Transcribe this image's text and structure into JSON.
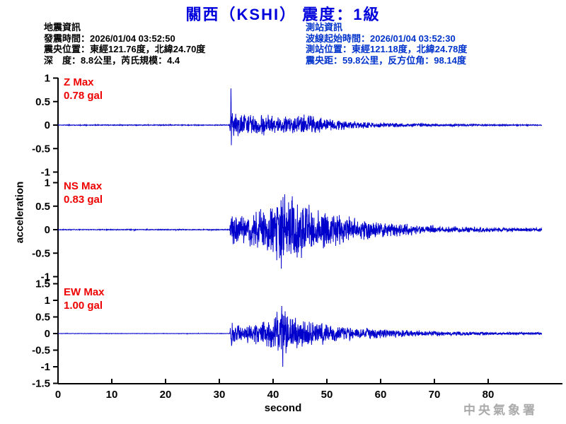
{
  "title": "關西（KSHI） 震度：1級",
  "earthquake_info": {
    "heading": "地震資訊",
    "lines": [
      "發震時間：2026/01/04 03:52:50",
      "震央位置：東經121.76度，北緯24.70度",
      "深　度：8.8公里，芮氏規模：4.4"
    ]
  },
  "station_info": {
    "heading": "測站資訊",
    "lines": [
      "波線起始時間：2026/01/04 03:52:30",
      "測站位置：東經121.18度，北緯24.78度",
      "震央距：59.8公里，反方位角：98.14度"
    ]
  },
  "watermark": "中央氣象署",
  "colors": {
    "title_blue": "#0000dd",
    "info_blue": "#0033cc",
    "label_red": "#ee0000",
    "trace_blue": "#0000cc",
    "axis_black": "#000000",
    "watermark_gray": "#aaaaaa"
  },
  "chart_data": {
    "type": "line",
    "title": "關西（KSHI） 震度：1級",
    "xlabel": "second",
    "ylabel": "acceleration",
    "x_range": [
      0,
      94
    ],
    "x_ticks": [
      0,
      10,
      20,
      30,
      40,
      50,
      60,
      70,
      80
    ],
    "grid": false,
    "event_onset_s": 32.1,
    "trace_end_s": 90,
    "trace_color": "#0000cc",
    "panels": [
      {
        "id": "Z",
        "label": "Z Max",
        "max_label": "0.78 gal",
        "max_gal": 0.78,
        "ylim": [
          -1,
          1
        ],
        "y_ticks": [
          1,
          0.5,
          0,
          -0.5,
          -1
        ],
        "peak_time_s": 32.15,
        "peak_direction": 1,
        "seed": 11,
        "envelope_t_amp_gal": [
          [
            0,
            0.01
          ],
          [
            31.9,
            0.01
          ],
          [
            32.1,
            0.78
          ],
          [
            32.5,
            0.3
          ],
          [
            34,
            0.26
          ],
          [
            37,
            0.24
          ],
          [
            40,
            0.22
          ],
          [
            44,
            0.2
          ],
          [
            47,
            0.26
          ],
          [
            48.5,
            0.18
          ],
          [
            52,
            0.12
          ],
          [
            56,
            0.08
          ],
          [
            60,
            0.06
          ],
          [
            65,
            0.045
          ],
          [
            70,
            0.035
          ],
          [
            75,
            0.027
          ],
          [
            80,
            0.022
          ],
          [
            85,
            0.016
          ],
          [
            90,
            0.013
          ]
        ]
      },
      {
        "id": "NS",
        "label": "NS Max",
        "max_label": "0.83 gal",
        "max_gal": 0.83,
        "ylim": [
          -1,
          1
        ],
        "y_ticks": [
          1,
          0.5,
          0,
          -0.5,
          -1
        ],
        "peak_time_s": 41.5,
        "peak_direction": -1,
        "seed": 22,
        "envelope_t_amp_gal": [
          [
            0,
            0.01
          ],
          [
            31.9,
            0.01
          ],
          [
            32.1,
            0.42
          ],
          [
            33,
            0.3
          ],
          [
            35,
            0.34
          ],
          [
            37,
            0.4
          ],
          [
            39,
            0.55
          ],
          [
            41.5,
            0.83
          ],
          [
            43,
            0.74
          ],
          [
            44.5,
            0.7
          ],
          [
            46,
            0.6
          ],
          [
            48,
            0.52
          ],
          [
            50,
            0.42
          ],
          [
            53,
            0.32
          ],
          [
            56,
            0.26
          ],
          [
            60,
            0.19
          ],
          [
            64,
            0.14
          ],
          [
            68,
            0.11
          ],
          [
            72,
            0.09
          ],
          [
            76,
            0.075
          ],
          [
            80,
            0.06
          ],
          [
            85,
            0.05
          ],
          [
            90,
            0.045
          ]
        ]
      },
      {
        "id": "EW",
        "label": "EW Max",
        "max_label": "1.00 gal",
        "max_gal": 1.0,
        "ylim": [
          -1.5,
          1.5
        ],
        "y_ticks": [
          1.5,
          1,
          0.5,
          0,
          -0.5,
          -1,
          -1.5
        ],
        "peak_time_s": 41.8,
        "peak_direction": -1,
        "seed": 33,
        "envelope_t_amp_gal": [
          [
            0,
            0.006
          ],
          [
            31.9,
            0.006
          ],
          [
            32.1,
            0.45
          ],
          [
            33,
            0.28
          ],
          [
            35,
            0.3
          ],
          [
            37,
            0.33
          ],
          [
            39,
            0.45
          ],
          [
            41,
            0.8
          ],
          [
            41.8,
            1.0
          ],
          [
            43.5,
            0.62
          ],
          [
            45,
            0.42
          ],
          [
            47,
            0.46
          ],
          [
            49,
            0.36
          ],
          [
            52,
            0.28
          ],
          [
            55,
            0.22
          ],
          [
            58,
            0.17
          ],
          [
            62,
            0.13
          ],
          [
            66,
            0.1
          ],
          [
            70,
            0.085
          ],
          [
            75,
            0.065
          ],
          [
            80,
            0.055
          ],
          [
            85,
            0.045
          ],
          [
            90,
            0.04
          ]
        ]
      }
    ]
  }
}
